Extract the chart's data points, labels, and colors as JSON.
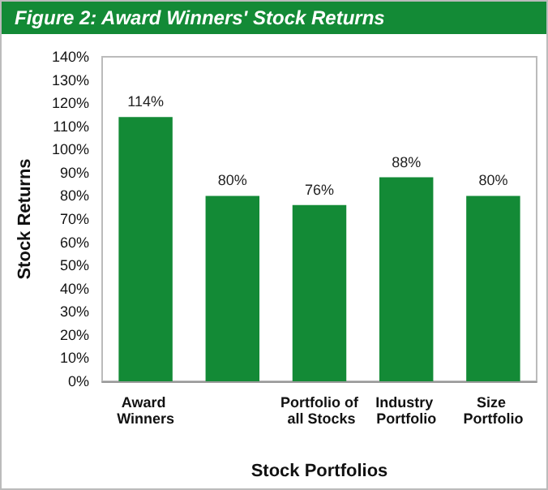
{
  "chart_data": {
    "type": "bar",
    "title": "Figure 2: Award Winners' Stock Returns",
    "categories": [
      "Award Winners",
      null,
      "Portfolio of all Stocks",
      "Industry Portfolio",
      "Size Portfolio"
    ],
    "values": [
      114,
      80,
      76,
      88,
      80
    ],
    "value_labels": [
      "114%",
      "80%",
      "76%",
      "88%",
      "80%"
    ],
    "color": "#138a36",
    "xlabel": "Stock Portfolios",
    "ylabel": "Stock Returns",
    "ylim": [
      0,
      140
    ],
    "yticks": [
      {
        "value": 0,
        "label": "0%"
      },
      {
        "value": 10,
        "label": "10%"
      },
      {
        "value": 20,
        "label": "20%"
      },
      {
        "value": 30,
        "label": "30%"
      },
      {
        "value": 40,
        "label": "40%"
      },
      {
        "value": 50,
        "label": "50%"
      },
      {
        "value": 60,
        "label": "60%"
      },
      {
        "value": 70,
        "label": "70%"
      },
      {
        "value": 80,
        "label": "80%"
      },
      {
        "value": 90,
        "label": "90%"
      },
      {
        "value": 100,
        "label": "100%"
      },
      {
        "value": 110,
        "label": "110%"
      },
      {
        "value": 120,
        "label": "120%"
      },
      {
        "value": 130,
        "label": "130%"
      },
      {
        "value": 140,
        "label": "140%"
      }
    ],
    "grid": false
  }
}
